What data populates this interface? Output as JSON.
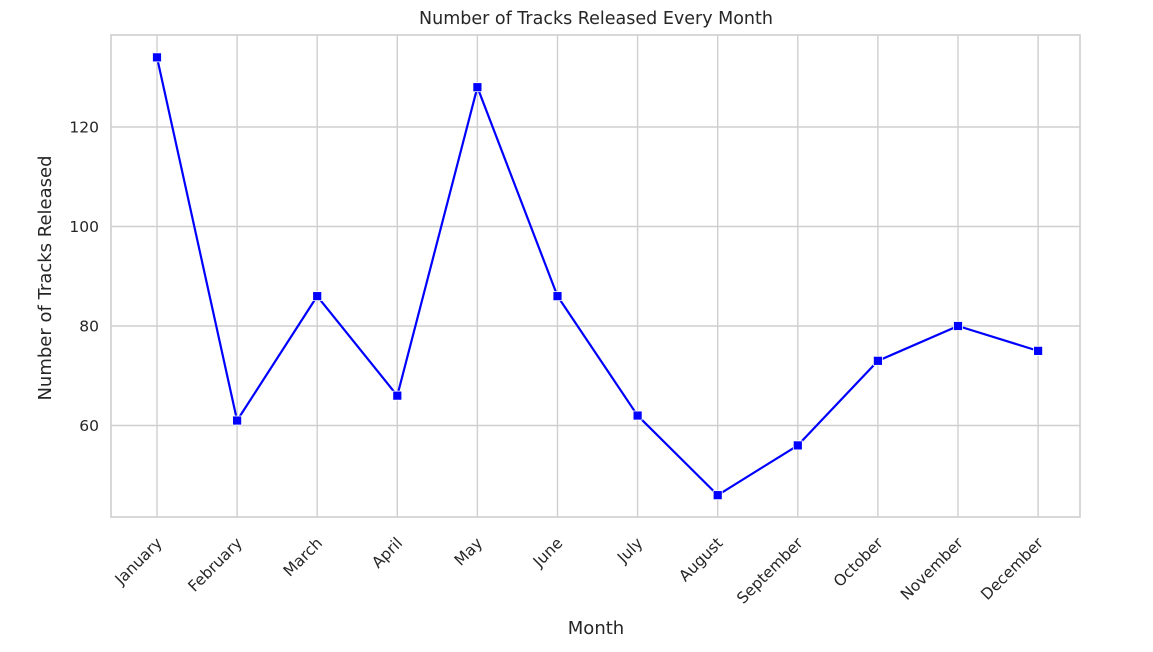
{
  "chart_data": {
    "type": "line",
    "title": "Number of Tracks Released Every Month",
    "xlabel": "Month",
    "ylabel": "Number of Tracks Released",
    "categories": [
      "January",
      "February",
      "March",
      "April",
      "May",
      "June",
      "July",
      "August",
      "September",
      "October",
      "November",
      "December"
    ],
    "series": [
      {
        "values": [
          134,
          61,
          86,
          66,
          128,
          86,
          62,
          46,
          56,
          73,
          80,
          75
        ],
        "color": "#0000ff",
        "marker": "square"
      }
    ],
    "yticks": [
      60,
      80,
      100,
      120
    ],
    "ylim": [
      42,
      138
    ],
    "grid": true
  }
}
